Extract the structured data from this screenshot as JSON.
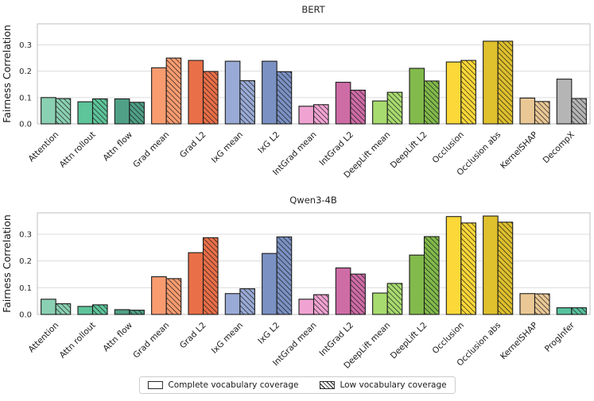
{
  "figure": {
    "background": "#ffffff"
  },
  "legend": {
    "items": [
      {
        "label": "Complete vocabulary coverage",
        "swatch": "solid-white"
      },
      {
        "label": "Low vocabulary coverage",
        "swatch": "hatched"
      }
    ],
    "border_color": "#cccccc",
    "position": "bottom-center"
  },
  "chart_data": [
    {
      "type": "bar",
      "title": "BERT",
      "ylabel": "Fairness Correlation",
      "ylim": [
        0,
        0.38
      ],
      "yticks": [
        0,
        0.1,
        0.2,
        0.3
      ],
      "grid": "horizontal",
      "categories": [
        "Attention",
        "Attn rollout",
        "Attn flow",
        "Grad mean",
        "Grad L2",
        "IxG mean",
        "IxG L2",
        "IntGrad mean",
        "IntGrad L2",
        "DeepLift mean",
        "DeepLift L2",
        "Occlusion",
        "Occlusion abs",
        "KernelSHAP",
        "DecompX"
      ],
      "bar_colors": [
        "#8ad0b2",
        "#5ec49a",
        "#4fa086",
        "#f89c70",
        "#e96f48",
        "#99aad6",
        "#7b91c3",
        "#f0a3d2",
        "#ce6ca6",
        "#a8db6f",
        "#82ba4b",
        "#fcd838",
        "#dfc02d",
        "#eac896",
        "#b5b5b5"
      ],
      "series": [
        {
          "name": "Complete vocabulary coverage",
          "style": "solid",
          "values": [
            0.1,
            0.084,
            0.095,
            0.213,
            0.241,
            0.238,
            0.238,
            0.067,
            0.158,
            0.087,
            0.211,
            0.235,
            0.314,
            0.098,
            0.17
          ]
        },
        {
          "name": "Low vocabulary coverage",
          "style": "hatched",
          "values": [
            0.096,
            0.095,
            0.082,
            0.25,
            0.199,
            0.164,
            0.198,
            0.073,
            0.128,
            0.12,
            0.163,
            0.241,
            0.314,
            0.085,
            0.096
          ]
        }
      ]
    },
    {
      "type": "bar",
      "title": "Qwen3-4B",
      "ylabel": "Fairness Correlation",
      "ylim": [
        0,
        0.38
      ],
      "yticks": [
        0,
        0.1,
        0.2,
        0.3
      ],
      "grid": "horizontal",
      "categories": [
        "Attention",
        "Attn rollout",
        "Attn flow",
        "Grad mean",
        "Grad L2",
        "IxG mean",
        "IxG L2",
        "IntGrad mean",
        "IntGrad L2",
        "DeepLift mean",
        "DeepLift L2",
        "Occlusion",
        "Occlusion abs",
        "KernelSHAP",
        "ProgInfer"
      ],
      "bar_colors": [
        "#8ad0b2",
        "#5ec49a",
        "#4fa086",
        "#f89c70",
        "#e96f48",
        "#99aad6",
        "#7b91c3",
        "#f0a3d2",
        "#ce6ca6",
        "#a8db6f",
        "#82ba4b",
        "#fcd838",
        "#dfc02d",
        "#eac896",
        "#58c29d"
      ],
      "series": [
        {
          "name": "Complete vocabulary coverage",
          "style": "solid",
          "values": [
            0.057,
            0.03,
            0.018,
            0.141,
            0.231,
            0.078,
            0.228,
            0.057,
            0.174,
            0.08,
            0.222,
            0.366,
            0.368,
            0.078,
            0.025
          ]
        },
        {
          "name": "Low vocabulary coverage",
          "style": "hatched",
          "values": [
            0.04,
            0.036,
            0.016,
            0.134,
            0.287,
            0.096,
            0.29,
            0.074,
            0.151,
            0.116,
            0.291,
            0.342,
            0.345,
            0.077,
            0.025
          ]
        }
      ]
    }
  ]
}
